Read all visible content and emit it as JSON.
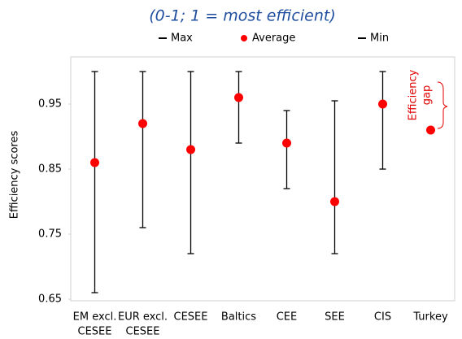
{
  "chart_data": {
    "type": "range",
    "title": "(0-1; 1 = most efficient)",
    "y_label": "Efficiency scores",
    "categories": [
      [
        "EM excl.",
        "CESEE"
      ],
      [
        "EUR excl.",
        "CESEE"
      ],
      [
        "CESEE"
      ],
      [
        "Baltics"
      ],
      [
        "CEE"
      ],
      [
        "SEE"
      ],
      [
        "CIS"
      ],
      [
        "Turkey"
      ]
    ],
    "series": [
      {
        "name": "Max",
        "color": "#000000",
        "values": [
          1.0,
          1.0,
          1.0,
          1.0,
          0.94,
          0.955,
          1.0,
          null
        ]
      },
      {
        "name": "Average",
        "color": "#ff0000",
        "values": [
          0.86,
          0.92,
          0.88,
          0.96,
          0.89,
          0.8,
          0.95,
          0.91
        ]
      },
      {
        "name": "Min",
        "color": "#000000",
        "values": [
          0.66,
          0.76,
          0.72,
          0.89,
          0.82,
          0.72,
          0.85,
          null
        ]
      }
    ],
    "ylim": [
      0.65,
      1.02
    ],
    "yticks": [
      0.65,
      0.75,
      0.85,
      0.95
    ],
    "annotation": [
      "Efficiency",
      "gap"
    ]
  }
}
